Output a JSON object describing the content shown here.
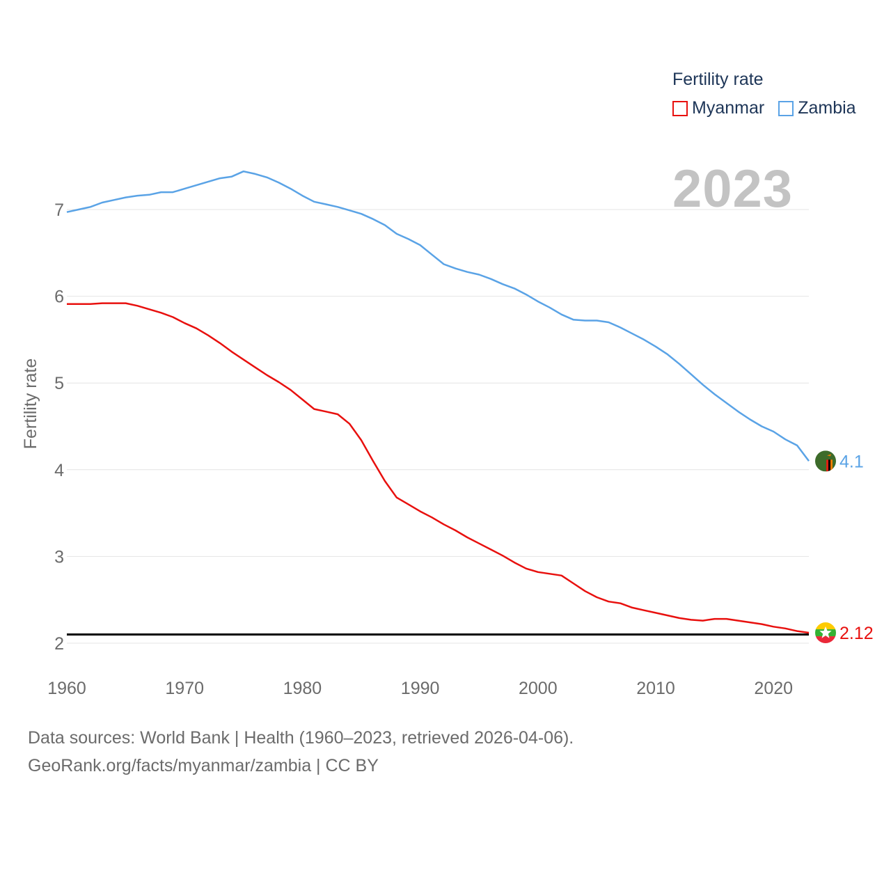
{
  "legend": {
    "title": "Fertility rate",
    "items": [
      {
        "name": "Myanmar",
        "color": "#e8100e"
      },
      {
        "name": "Zambia",
        "color": "#5aa3e6"
      }
    ]
  },
  "year_label": "2023",
  "footer": {
    "line1": "Data sources: World Bank | Health (1960–2023, retrieved 2026-04-06).",
    "line2": "GeoRank.org/facts/myanmar/zambia | CC BY"
  },
  "chart_data": {
    "type": "line",
    "title": "",
    "xlabel": "",
    "ylabel": "Fertility rate",
    "xlim": [
      1960,
      2023
    ],
    "ylim": [
      2,
      7
    ],
    "x_ticks": [
      1960,
      1970,
      1980,
      1990,
      2000,
      2010,
      2020
    ],
    "y_ticks": [
      2,
      3,
      4,
      5,
      6,
      7
    ],
    "grid": true,
    "reference_line": {
      "value": 2.1,
      "color": "#000000"
    },
    "x": [
      1960,
      1961,
      1962,
      1963,
      1964,
      1965,
      1966,
      1967,
      1968,
      1969,
      1970,
      1971,
      1972,
      1973,
      1974,
      1975,
      1976,
      1977,
      1978,
      1979,
      1980,
      1981,
      1982,
      1983,
      1984,
      1985,
      1986,
      1987,
      1988,
      1989,
      1990,
      1991,
      1992,
      1993,
      1994,
      1995,
      1996,
      1997,
      1998,
      1999,
      2000,
      2001,
      2002,
      2003,
      2004,
      2005,
      2006,
      2007,
      2008,
      2009,
      2010,
      2011,
      2012,
      2013,
      2014,
      2015,
      2016,
      2017,
      2018,
      2019,
      2020,
      2021,
      2022,
      2023
    ],
    "series": [
      {
        "name": "Myanmar",
        "color": "#e8100e",
        "end_label": "2.12",
        "values": [
          5.91,
          5.91,
          5.91,
          5.92,
          5.92,
          5.92,
          5.89,
          5.85,
          5.81,
          5.76,
          5.69,
          5.63,
          5.55,
          5.46,
          5.36,
          5.27,
          5.18,
          5.09,
          5.01,
          4.92,
          4.81,
          4.7,
          4.67,
          4.64,
          4.53,
          4.34,
          4.1,
          3.87,
          3.68,
          3.6,
          3.52,
          3.45,
          3.37,
          3.3,
          3.22,
          3.15,
          3.08,
          3.01,
          2.93,
          2.86,
          2.82,
          2.8,
          2.78,
          2.69,
          2.6,
          2.53,
          2.48,
          2.46,
          2.41,
          2.38,
          2.35,
          2.32,
          2.29,
          2.27,
          2.26,
          2.28,
          2.28,
          2.26,
          2.24,
          2.22,
          2.19,
          2.17,
          2.14,
          2.12
        ]
      },
      {
        "name": "Zambia",
        "color": "#5aa3e6",
        "end_label": "4.1",
        "values": [
          6.97,
          7.0,
          7.03,
          7.08,
          7.11,
          7.14,
          7.16,
          7.17,
          7.2,
          7.2,
          7.24,
          7.28,
          7.32,
          7.36,
          7.38,
          7.44,
          7.41,
          7.37,
          7.31,
          7.24,
          7.16,
          7.09,
          7.06,
          7.03,
          6.99,
          6.95,
          6.89,
          6.82,
          6.72,
          6.66,
          6.59,
          6.48,
          6.37,
          6.32,
          6.28,
          6.25,
          6.2,
          6.14,
          6.09,
          6.02,
          5.94,
          5.87,
          5.79,
          5.73,
          5.72,
          5.72,
          5.7,
          5.64,
          5.57,
          5.5,
          5.42,
          5.33,
          5.22,
          5.1,
          4.98,
          4.87,
          4.77,
          4.67,
          4.58,
          4.5,
          4.44,
          4.35,
          4.28,
          4.1
        ]
      }
    ]
  }
}
